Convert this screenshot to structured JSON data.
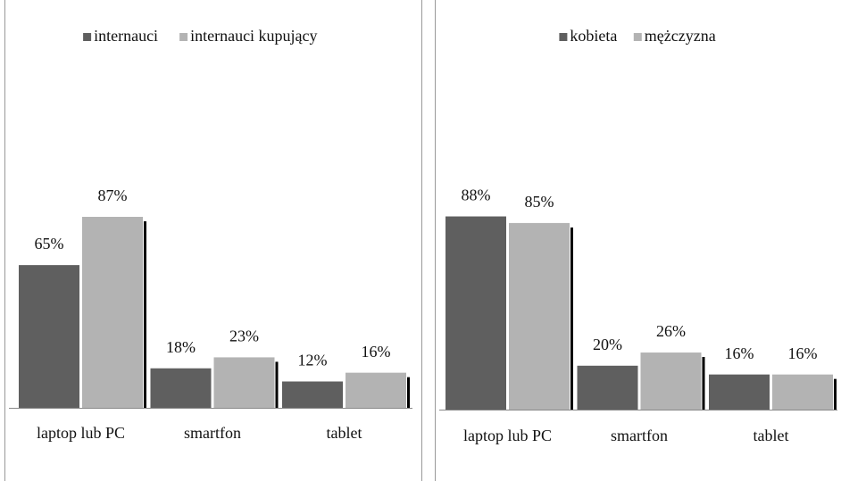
{
  "chart_data": [
    {
      "type": "bar",
      "categories": [
        "laptop lub PC",
        "smartfon",
        "tablet"
      ],
      "series": [
        {
          "name": "internauci",
          "color": "#5f5f5f",
          "values": [
            65,
            18,
            12
          ],
          "value_labels": [
            "65%",
            "18%",
            "12%"
          ]
        },
        {
          "name": "internauci kupujący",
          "color": "#b3b3b3",
          "values": [
            87,
            23,
            16
          ],
          "value_labels": [
            "87%",
            "23%",
            "16%"
          ]
        }
      ]
    },
    {
      "type": "bar",
      "categories": [
        "laptop lub PC",
        "smartfon",
        "tablet"
      ],
      "series": [
        {
          "name": "kobieta",
          "color": "#5f5f5f",
          "values": [
            88,
            20,
            16
          ],
          "value_labels": [
            "88%",
            "20%",
            "16%"
          ]
        },
        {
          "name": "mężczyzna",
          "color": "#b3b3b3",
          "values": [
            85,
            26,
            16
          ],
          "value_labels": [
            "85%",
            "26%",
            "16%"
          ]
        }
      ]
    }
  ]
}
